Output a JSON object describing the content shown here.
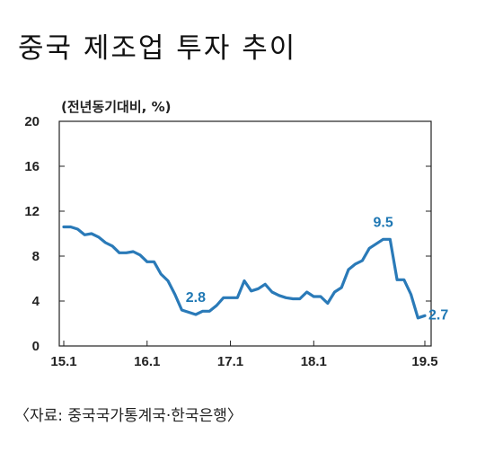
{
  "header": {
    "title": "중국 제조업 투자 추이"
  },
  "footer": {
    "source": "〈자료: 중국국가통계국·한국은행〉"
  },
  "colors": {
    "line": "#2a7ab8",
    "axis": "#222222",
    "label": "#1f78b4"
  },
  "chart_data": {
    "type": "line",
    "title": "중국 제조업 투자 추이",
    "unit_label": "(전년동기대비, %)",
    "ylim": [
      0,
      20
    ],
    "y_ticks": [
      0,
      4,
      8,
      12,
      16,
      20
    ],
    "x_ticks": [
      {
        "label": "15.1",
        "index": 0
      },
      {
        "label": "16.1",
        "index": 12
      },
      {
        "label": "17.1",
        "index": 24
      },
      {
        "label": "18.1",
        "index": 36
      },
      {
        "label": "19.5",
        "index": 52
      }
    ],
    "grid": false,
    "series": [
      {
        "values": [
          10.6,
          10.6,
          10.4,
          9.9,
          10.0,
          9.7,
          9.2,
          8.9,
          8.3,
          8.3,
          8.4,
          8.1,
          7.5,
          7.5,
          6.4,
          5.8,
          4.6,
          3.2,
          3.0,
          2.8,
          3.1,
          3.1,
          3.6,
          4.3,
          4.3,
          4.3,
          5.8,
          4.9,
          5.1,
          5.5,
          4.8,
          4.5,
          4.3,
          4.2,
          4.2,
          4.8,
          4.4,
          4.4,
          3.8,
          4.8,
          5.2,
          6.8,
          7.3,
          7.6,
          8.7,
          9.1,
          9.5,
          9.5,
          5.9,
          5.9,
          4.6,
          2.5,
          2.7
        ]
      }
    ],
    "annotations": [
      {
        "index": 19,
        "text": "2.8"
      },
      {
        "index": 46,
        "text": "9.5"
      },
      {
        "index": 52,
        "text": "2.7"
      }
    ]
  }
}
